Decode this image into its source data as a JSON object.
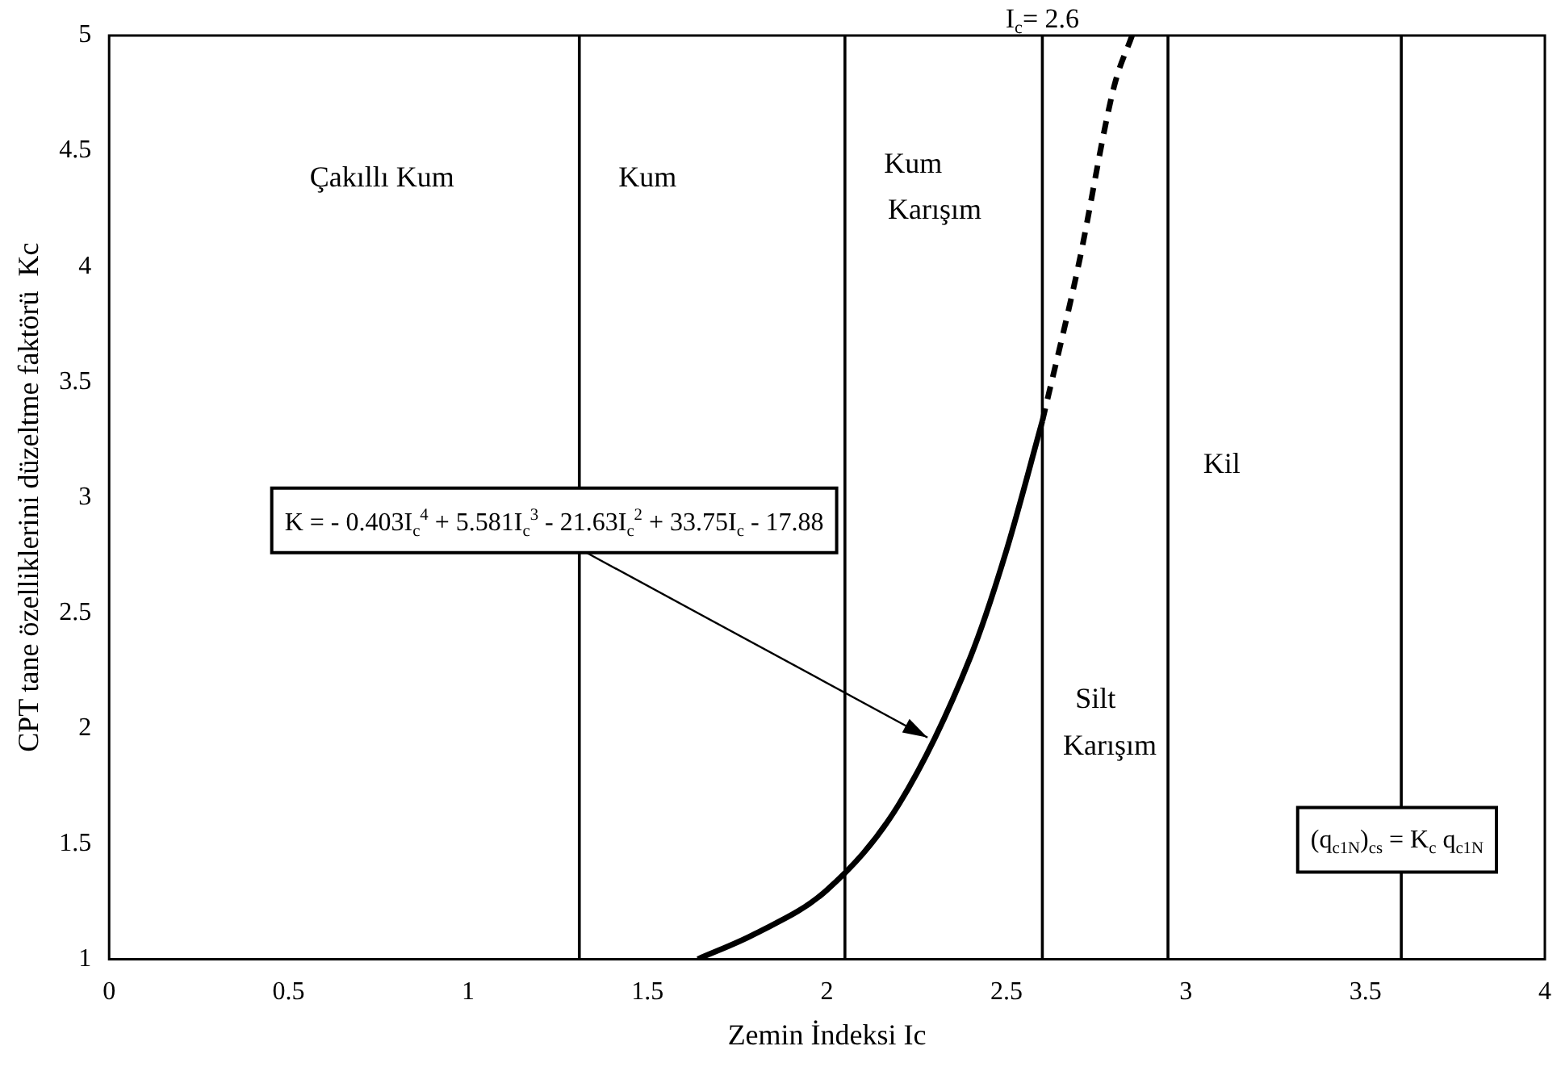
{
  "chart_data": {
    "type": "line",
    "xlabel": "Zemin İndeksi Ic",
    "ylabel": "CPT tane özelliklerini düzeltme faktörü  Kc",
    "xlim": [
      0,
      4
    ],
    "xticks": [
      0,
      0.5,
      1,
      1.5,
      2,
      2.5,
      3,
      3.5,
      4
    ],
    "ylim": [
      1,
      5
    ],
    "yticks": [
      1,
      1.5,
      2,
      2.5,
      3,
      3.5,
      4,
      4.5,
      5
    ],
    "grid": false,
    "legend": false,
    "marker": "none",
    "series": [
      {
        "color": "#000000",
        "line_style": "solid",
        "x": [
          1.64,
          1.8,
          2.0,
          2.2,
          2.4,
          2.5,
          2.6
        ],
        "values": [
          1.0,
          1.11,
          1.3,
          1.67,
          2.31,
          2.77,
          3.33
        ]
      },
      {
        "color": "#000000",
        "line_style": "dashed",
        "x": [
          2.6,
          2.7,
          2.8,
          2.85
        ],
        "values": [
          3.33,
          4.0,
          4.78,
          5.0
        ]
      }
    ],
    "ref_lines": [
      {
        "axis": "x",
        "value": 1.31,
        "color": "#000000"
      },
      {
        "axis": "x",
        "value": 2.05,
        "color": "#000000"
      },
      {
        "axis": "x",
        "value": 2.6,
        "label": "I$_{c}$= 2.6",
        "color": "#000000"
      },
      {
        "axis": "x",
        "value": 2.95,
        "color": "#000000"
      },
      {
        "axis": "x",
        "value": 3.6,
        "color": "#000000"
      }
    ],
    "annotations": [
      "Çakıllı Kum",
      "Kum",
      "Kum",
      "Karışım",
      "Kil",
      "Silt",
      "Karışım",
      "K = - 0.403I$_{c}$$^{4}$ + 5.581I$_{c}$$^{3}$ - 21.63I$_{c}$$^{2}$ + 33.75I$_{c}$ - 17.88",
      "(q$_{c1N}$)$_{cs}$ = K$_{c}$ q$_{c1N}$"
    ]
  }
}
